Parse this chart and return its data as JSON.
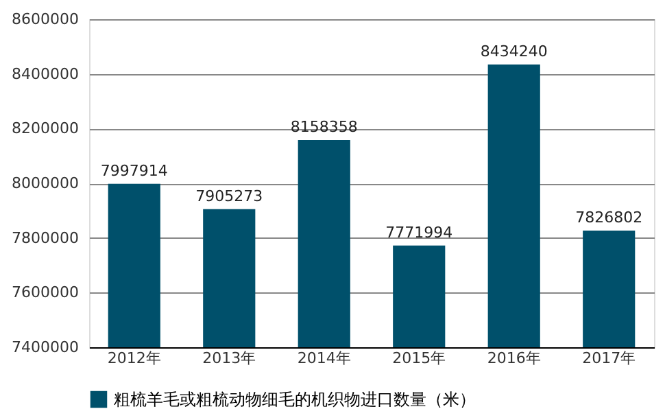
{
  "chart_data": {
    "type": "bar",
    "categories": [
      "2012年",
      "2013年",
      "2014年",
      "2015年",
      "2016年",
      "2017年"
    ],
    "series": [
      {
        "name": "粗梳羊毛或粗梳动物细毛的机织物进口数量（米）",
        "color": "#00506b",
        "values": [
          7997914,
          7905273,
          8158358,
          7771994,
          8434240,
          7826802
        ]
      }
    ],
    "ylim": [
      7400000,
      8600000
    ],
    "yticks": [
      7400000,
      7600000,
      7800000,
      8000000,
      8200000,
      8400000,
      8600000
    ],
    "grid": "y",
    "legend": "bottom",
    "data_labels": true
  }
}
